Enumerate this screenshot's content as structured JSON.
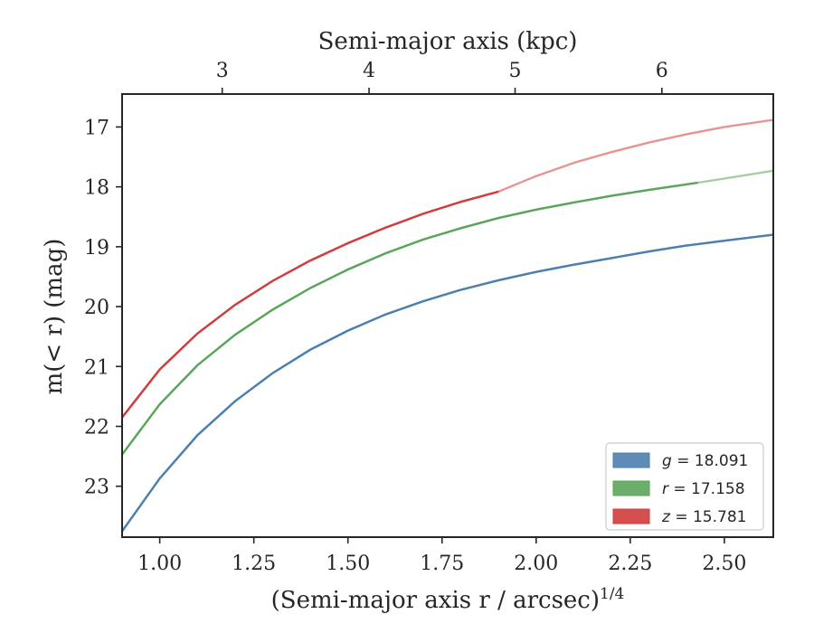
{
  "chart_data": {
    "type": "line",
    "xlabel": "(Semi-major axis r / arcsec)",
    "xlabel_superscript": "1/4",
    "ylabel": "m(< r) (mag)",
    "top_xlabel": "Semi-major axis (kpc)",
    "xlim": [
      0.9,
      2.63
    ],
    "ylim": [
      23.85,
      16.45
    ],
    "y_inverted": true,
    "x_ticks": [
      "1.00",
      "1.25",
      "1.50",
      "1.75",
      "2.00",
      "2.25",
      "2.50"
    ],
    "y_ticks": [
      "17",
      "18",
      "19",
      "20",
      "21",
      "22",
      "23"
    ],
    "top_ticks": [
      {
        "label": "3",
        "x": 1.166
      },
      {
        "label": "4",
        "x": 1.556
      },
      {
        "label": "5",
        "x": 1.944
      },
      {
        "label": "6",
        "x": 2.334
      }
    ],
    "grid": false,
    "legend_position": "lower-right",
    "series": [
      {
        "name": "g = 18.091",
        "legend_var": "g",
        "legend_value": "18.091",
        "color": "#4c7faf",
        "x": [
          0.9,
          1.0,
          1.1,
          1.2,
          1.3,
          1.4,
          1.5,
          1.6,
          1.7,
          1.8,
          1.9,
          2.0,
          2.1,
          2.2,
          2.3,
          2.4,
          2.5,
          2.63
        ],
        "y": [
          23.75,
          22.87,
          22.15,
          21.58,
          21.11,
          20.72,
          20.4,
          20.13,
          19.91,
          19.72,
          19.56,
          19.42,
          19.3,
          19.19,
          19.08,
          18.98,
          18.9,
          18.8
        ],
        "solid_until": 2.63
      },
      {
        "name": "r = 17.158",
        "legend_var": "r",
        "legend_value": "17.158",
        "color": "#5ba55b",
        "x": [
          0.9,
          1.0,
          1.1,
          1.2,
          1.3,
          1.4,
          1.5,
          1.6,
          1.7,
          1.8,
          1.9,
          2.0,
          2.1,
          2.2,
          2.3,
          2.43,
          2.5,
          2.63
        ],
        "y": [
          22.47,
          21.63,
          20.98,
          20.47,
          20.05,
          19.69,
          19.38,
          19.11,
          18.88,
          18.69,
          18.52,
          18.38,
          18.26,
          18.15,
          18.05,
          17.93,
          17.86,
          17.73
        ],
        "solid_until": 2.43
      },
      {
        "name": "z = 15.781",
        "legend_var": "z",
        "legend_value": "15.781",
        "color": "#d13c3c",
        "x": [
          0.9,
          1.0,
          1.1,
          1.2,
          1.3,
          1.4,
          1.5,
          1.6,
          1.7,
          1.8,
          1.9,
          2.0,
          2.1,
          2.2,
          2.3,
          2.4,
          2.5,
          2.63
        ],
        "y": [
          21.85,
          21.05,
          20.45,
          19.97,
          19.57,
          19.23,
          18.94,
          18.68,
          18.45,
          18.25,
          18.08,
          17.82,
          17.6,
          17.42,
          17.26,
          17.12,
          17.0,
          16.88
        ],
        "solid_until": 1.9
      }
    ]
  }
}
